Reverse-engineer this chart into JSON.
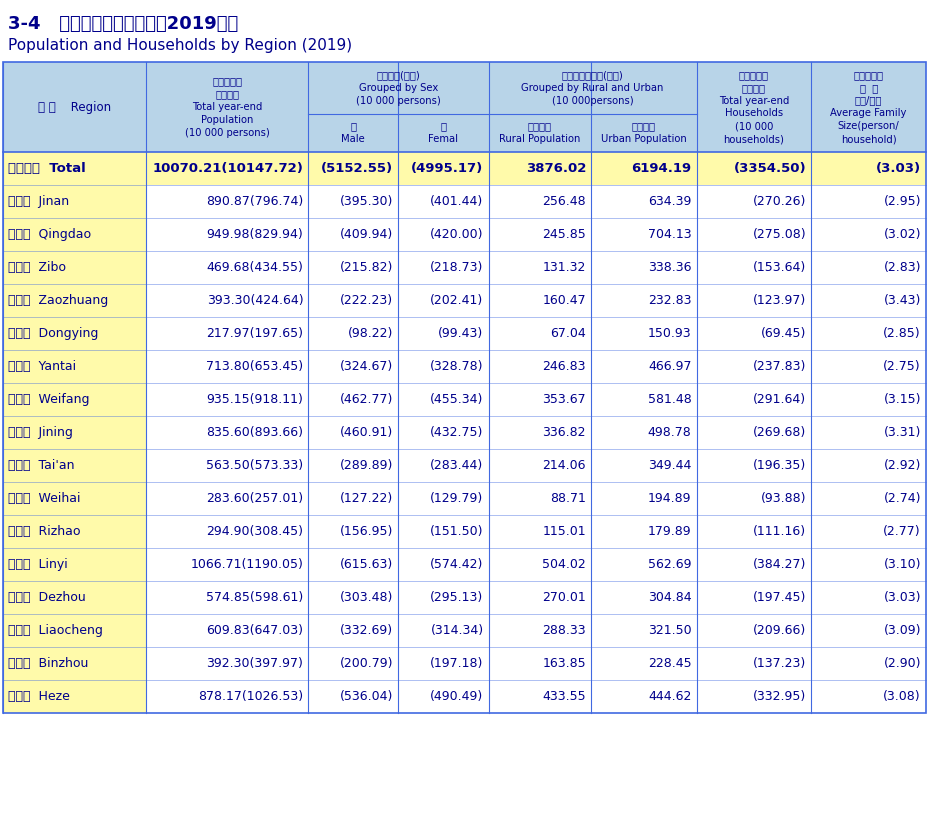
{
  "title1": "3-4   各市人口数和总户数（2019年）",
  "title2": "Population and Households by Region (2019)",
  "header_bg": "#B8D4E8",
  "left_col_bg": "#FFFAAA",
  "total_row_bg": "#FFFAAA",
  "data_row_bg": "#FFFFFF",
  "border_color": "#4169E1",
  "text_color": "#00008B",
  "title_color": "#00008B",
  "rows": [
    {
      "region_cn": "全省总计",
      "region_en": "Total",
      "bold": true,
      "total_pop": "10070.21(10147.72)",
      "male": "(5152.55)",
      "female": "(4995.17)",
      "rural": "3876.02",
      "urban": "6194.19",
      "households": "(3354.50)",
      "avg_family": "(3.03)"
    },
    {
      "region_cn": "济南市",
      "region_en": "Jinan",
      "bold": false,
      "total_pop": "890.87(796.74)",
      "male": "(395.30)",
      "female": "(401.44)",
      "rural": "256.48",
      "urban": "634.39",
      "households": "(270.26)",
      "avg_family": "(2.95)"
    },
    {
      "region_cn": "青岛市",
      "region_en": "Qingdao",
      "bold": false,
      "total_pop": "949.98(829.94)",
      "male": "(409.94)",
      "female": "(420.00)",
      "rural": "245.85",
      "urban": "704.13",
      "households": "(275.08)",
      "avg_family": "(3.02)"
    },
    {
      "region_cn": "淄博市",
      "region_en": "Zibo",
      "bold": false,
      "total_pop": "469.68(434.55)",
      "male": "(215.82)",
      "female": "(218.73)",
      "rural": "131.32",
      "urban": "338.36",
      "households": "(153.64)",
      "avg_family": "(2.83)"
    },
    {
      "region_cn": "枣庄市",
      "region_en": "Zaozhuang",
      "bold": false,
      "total_pop": "393.30(424.64)",
      "male": "(222.23)",
      "female": "(202.41)",
      "rural": "160.47",
      "urban": "232.83",
      "households": "(123.97)",
      "avg_family": "(3.43)"
    },
    {
      "region_cn": "东营市",
      "region_en": "Dongying",
      "bold": false,
      "total_pop": "217.97(197.65)",
      "male": "(98.22)",
      "female": "(99.43)",
      "rural": "67.04",
      "urban": "150.93",
      "households": "(69.45)",
      "avg_family": "(2.85)"
    },
    {
      "region_cn": "烟台市",
      "region_en": "Yantai",
      "bold": false,
      "total_pop": "713.80(653.45)",
      "male": "(324.67)",
      "female": "(328.78)",
      "rural": "246.83",
      "urban": "466.97",
      "households": "(237.83)",
      "avg_family": "(2.75)"
    },
    {
      "region_cn": "潍坊市",
      "region_en": "Weifang",
      "bold": false,
      "total_pop": "935.15(918.11)",
      "male": "(462.77)",
      "female": "(455.34)",
      "rural": "353.67",
      "urban": "581.48",
      "households": "(291.64)",
      "avg_family": "(3.15)"
    },
    {
      "region_cn": "济宁市",
      "region_en": "Jining",
      "bold": false,
      "total_pop": "835.60(893.66)",
      "male": "(460.91)",
      "female": "(432.75)",
      "rural": "336.82",
      "urban": "498.78",
      "households": "(269.68)",
      "avg_family": "(3.31)"
    },
    {
      "region_cn": "泰安市",
      "region_en": "Tai'an",
      "bold": false,
      "total_pop": "563.50(573.33)",
      "male": "(289.89)",
      "female": "(283.44)",
      "rural": "214.06",
      "urban": "349.44",
      "households": "(196.35)",
      "avg_family": "(2.92)"
    },
    {
      "region_cn": "威海市",
      "region_en": "Weihai",
      "bold": false,
      "total_pop": "283.60(257.01)",
      "male": "(127.22)",
      "female": "(129.79)",
      "rural": "88.71",
      "urban": "194.89",
      "households": "(93.88)",
      "avg_family": "(2.74)"
    },
    {
      "region_cn": "日照市",
      "region_en": "Rizhao",
      "bold": false,
      "total_pop": "294.90(308.45)",
      "male": "(156.95)",
      "female": "(151.50)",
      "rural": "115.01",
      "urban": "179.89",
      "households": "(111.16)",
      "avg_family": "(2.77)"
    },
    {
      "region_cn": "临沂市",
      "region_en": "Linyi",
      "bold": false,
      "total_pop": "1066.71(1190.05)",
      "male": "(615.63)",
      "female": "(574.42)",
      "rural": "504.02",
      "urban": "562.69",
      "households": "(384.27)",
      "avg_family": "(3.10)"
    },
    {
      "region_cn": "德州市",
      "region_en": "Dezhou",
      "bold": false,
      "total_pop": "574.85(598.61)",
      "male": "(303.48)",
      "female": "(295.13)",
      "rural": "270.01",
      "urban": "304.84",
      "households": "(197.45)",
      "avg_family": "(3.03)"
    },
    {
      "region_cn": "聊城市",
      "region_en": "Liaocheng",
      "bold": false,
      "total_pop": "609.83(647.03)",
      "male": "(332.69)",
      "female": "(314.34)",
      "rural": "288.33",
      "urban": "321.50",
      "households": "(209.66)",
      "avg_family": "(3.09)"
    },
    {
      "region_cn": "滨州市",
      "region_en": "Binzhou",
      "bold": false,
      "total_pop": "392.30(397.97)",
      "male": "(200.79)",
      "female": "(197.18)",
      "rural": "163.85",
      "urban": "228.45",
      "households": "(137.23)",
      "avg_family": "(2.90)"
    },
    {
      "region_cn": "菏泽市",
      "region_en": "Heze",
      "bold": false,
      "total_pop": "878.17(1026.53)",
      "male": "(536.04)",
      "female": "(490.49)",
      "rural": "433.55",
      "urban": "444.62",
      "households": "(332.95)",
      "avg_family": "(3.08)"
    }
  ]
}
